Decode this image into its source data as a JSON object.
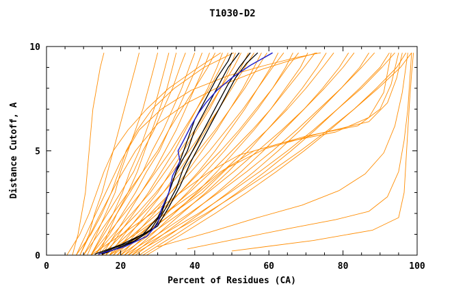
{
  "chart_data": {
    "type": "line",
    "title": "T1030-D2",
    "xlabel": "Percent of Residues (CA)",
    "ylabel": "Distance Cutoff, A",
    "xlim": [
      0,
      100
    ],
    "ylim": [
      0,
      10
    ],
    "x_ticks_major": [
      0,
      20,
      40,
      60,
      80,
      100
    ],
    "x_ticks_minor_step": 5,
    "y_ticks_major": [
      0,
      5,
      10
    ],
    "y_ticks_minor_step": 1,
    "grid": false,
    "legend": "none",
    "colors": {
      "models": "#ff8c00",
      "reference": "#000000",
      "highlight": "#2222cc",
      "frame": "#000000",
      "background": "#ffffff"
    },
    "y_levels": [
      0,
      1,
      2,
      3,
      4,
      5,
      6,
      7,
      8,
      9,
      9.7
    ],
    "orange_curves_x": [
      [
        7,
        8.5,
        9.5,
        10.5,
        11,
        11.5,
        12,
        12.5,
        13.5,
        14.5,
        15.5
      ],
      [
        9,
        11.5,
        13,
        15,
        16.5,
        18,
        19.5,
        21,
        22.5,
        24,
        25
      ],
      [
        11,
        13.5,
        16,
        18.5,
        20,
        22,
        24,
        26,
        27.5,
        29,
        30
      ],
      [
        12,
        15,
        18,
        20.5,
        22.5,
        25,
        27,
        29,
        30.5,
        32,
        33
      ],
      [
        14,
        16.5,
        19,
        22,
        24.5,
        26.5,
        28.5,
        30.5,
        32.5,
        34,
        35
      ],
      [
        10,
        13,
        16.5,
        20,
        23.5,
        26,
        29,
        31.5,
        34,
        36,
        37.5
      ],
      [
        12,
        15.5,
        19,
        22.5,
        26,
        28.5,
        31.5,
        34,
        36.5,
        38.5,
        40
      ],
      [
        13,
        17,
        20.5,
        24,
        27,
        30.5,
        33,
        35.5,
        38,
        40.5,
        42
      ],
      [
        15,
        18.5,
        22,
        25.5,
        29,
        32,
        35,
        37.5,
        40,
        42.5,
        44
      ],
      [
        10,
        14,
        18,
        22,
        26,
        30,
        33,
        36.5,
        40,
        43.5,
        45.5
      ],
      [
        16,
        19.5,
        23.5,
        27.5,
        31,
        34.5,
        37.5,
        40.5,
        43.5,
        46,
        47.5
      ],
      [
        12,
        16.5,
        21,
        25.5,
        29.5,
        33.5,
        37,
        40.5,
        44,
        47,
        49
      ],
      [
        17,
        21,
        25.5,
        30,
        33.5,
        37,
        40.5,
        44,
        47,
        49.5,
        51
      ],
      [
        13,
        18,
        23,
        28,
        32,
        36,
        40,
        43.5,
        47,
        50.5,
        52.5
      ],
      [
        18,
        22.5,
        27,
        31.5,
        35.5,
        39.5,
        43,
        46.5,
        49.5,
        52.5,
        54.5
      ],
      [
        14,
        19,
        24.5,
        29.5,
        34,
        38.5,
        42.5,
        46.5,
        50,
        53.5,
        56
      ],
      [
        19,
        24,
        29,
        33.5,
        38,
        42,
        46,
        49.5,
        53,
        56,
        58
      ],
      [
        15,
        20.5,
        26,
        31.5,
        36.5,
        41,
        45.5,
        49.5,
        53.5,
        57,
        59.5
      ],
      [
        20,
        25.5,
        31,
        36,
        41,
        45.5,
        49.5,
        53.5,
        57,
        60.5,
        62.5
      ],
      [
        16,
        22,
        28,
        33.5,
        39,
        44,
        48.5,
        53,
        57,
        61,
        64
      ],
      [
        21,
        27,
        32.5,
        38,
        43,
        48,
        52.5,
        57,
        61,
        64.5,
        66.5
      ],
      [
        17,
        23.5,
        30,
        36,
        41.5,
        47,
        52,
        56.5,
        61,
        65,
        68
      ],
      [
        22,
        28.5,
        34.5,
        40.5,
        46,
        51,
        56,
        60.5,
        64.5,
        68.5,
        70.5
      ],
      [
        18,
        25,
        32,
        38.5,
        44.5,
        50,
        55.5,
        60.5,
        65,
        69.5,
        72.5
      ],
      [
        23,
        30,
        36.5,
        43,
        49,
        54.5,
        59.5,
        64.5,
        69,
        73,
        75.5
      ],
      [
        19,
        26.5,
        34,
        41,
        47.5,
        53.5,
        59.5,
        65,
        70,
        74.5,
        77.5
      ],
      [
        24,
        31.5,
        39,
        46,
        52.5,
        58.5,
        64,
        69.5,
        74.5,
        79,
        81.5
      ],
      [
        20,
        28,
        36,
        43.5,
        50.5,
        57,
        63.5,
        69.5,
        75,
        80,
        83
      ],
      [
        25,
        33.5,
        41.5,
        49,
        56,
        62.5,
        68.5,
        74,
        79.5,
        84.5,
        87
      ],
      [
        21,
        30,
        38.5,
        46.5,
        54,
        61,
        67.5,
        73.5,
        79.5,
        85,
        88.5
      ],
      [
        26,
        35,
        43.5,
        51.5,
        59,
        66,
        72.5,
        78.5,
        84.5,
        90,
        92.5
      ],
      [
        22,
        31.5,
        41,
        49.5,
        57.5,
        65,
        72,
        78.5,
        85,
        90.5,
        94
      ],
      [
        27,
        36.5,
        45.5,
        54,
        62,
        69.5,
        76.5,
        83,
        89,
        94.5,
        97
      ],
      [
        23,
        33,
        43,
        52,
        60.5,
        68.5,
        76,
        83,
        89.5,
        95.5,
        98.5
      ],
      [
        5.5,
        9,
        11.5,
        13.5,
        15.5,
        18,
        22,
        27,
        33,
        41,
        47
      ],
      [
        8,
        12,
        15,
        17.5,
        19.5,
        21.5,
        24.5,
        28.5,
        34.5,
        42.5,
        50.5
      ]
    ],
    "orange_curves_pts": [
      [
        [
          50,
          0.2
        ],
        [
          72,
          0.7
        ],
        [
          88,
          1.2
        ],
        [
          95,
          1.8
        ],
        [
          96.5,
          3
        ],
        [
          97,
          4.5
        ],
        [
          97.5,
          6
        ],
        [
          98,
          7.5
        ],
        [
          98.5,
          8.7
        ],
        [
          99,
          9.7
        ]
      ],
      [
        [
          38,
          0.3
        ],
        [
          52,
          0.8
        ],
        [
          66,
          1.3
        ],
        [
          78,
          1.7
        ],
        [
          87,
          2.1
        ],
        [
          92,
          2.8
        ],
        [
          95,
          4
        ],
        [
          96.5,
          5.5
        ],
        [
          97.5,
          7
        ],
        [
          98.5,
          9.7
        ]
      ],
      [
        [
          30,
          0.4
        ],
        [
          44,
          1.1
        ],
        [
          57,
          1.8
        ],
        [
          69,
          2.4
        ],
        [
          79,
          3.1
        ],
        [
          86,
          3.9
        ],
        [
          91,
          4.9
        ],
        [
          94,
          6.2
        ],
        [
          96,
          7.8
        ],
        [
          97.5,
          9.7
        ]
      ],
      [
        [
          15,
          0
        ],
        [
          24,
          1
        ],
        [
          32,
          2
        ],
        [
          40,
          3
        ],
        [
          47,
          4
        ],
        [
          56,
          5
        ],
        [
          70,
          5.7
        ],
        [
          84,
          6.2
        ],
        [
          90,
          7
        ],
        [
          93,
          8.2
        ],
        [
          95,
          9.7
        ]
      ],
      [
        [
          17,
          0
        ],
        [
          26,
          1
        ],
        [
          34,
          2
        ],
        [
          42,
          3
        ],
        [
          49,
          4.2
        ],
        [
          59,
          5.1
        ],
        [
          73,
          5.8
        ],
        [
          87,
          6.4
        ],
        [
          92,
          7.3
        ],
        [
          94.5,
          8.5
        ],
        [
          96,
          9.7
        ]
      ],
      [
        [
          12,
          0
        ],
        [
          22,
          1.2
        ],
        [
          30,
          2.2
        ],
        [
          37,
          3.1
        ],
        [
          44,
          4
        ],
        [
          52,
          4.8
        ],
        [
          64,
          5.4
        ],
        [
          78,
          5.9
        ],
        [
          87,
          6.6
        ],
        [
          91,
          7.8
        ],
        [
          93,
          9.7
        ]
      ],
      [
        [
          8,
          0
        ],
        [
          12,
          1.5
        ],
        [
          16,
          3
        ],
        [
          20,
          4.5
        ],
        [
          25,
          6
        ],
        [
          31,
          7
        ],
        [
          39,
          7.9
        ],
        [
          49,
          8.6
        ],
        [
          59,
          9.1
        ],
        [
          68,
          9.5
        ],
        [
          74,
          9.7
        ]
      ],
      [
        [
          9,
          0
        ],
        [
          14,
          1.8
        ],
        [
          19,
          3.5
        ],
        [
          24,
          5
        ],
        [
          30,
          6.3
        ],
        [
          38,
          7.3
        ],
        [
          48,
          8.2
        ],
        [
          58,
          8.9
        ],
        [
          67,
          9.4
        ],
        [
          73,
          9.7
        ]
      ]
    ],
    "black_curves_pts": [
      [
        [
          13,
          0.05
        ],
        [
          20,
          0.5
        ],
        [
          26,
          1
        ],
        [
          30,
          1.8
        ],
        [
          32,
          2.5
        ],
        [
          34,
          3.5
        ],
        [
          36,
          4.5
        ],
        [
          38,
          5.5
        ],
        [
          40,
          6.5
        ],
        [
          43,
          7.5
        ],
        [
          46,
          8.5
        ],
        [
          49,
          9.3
        ],
        [
          50,
          9.7
        ]
      ],
      [
        [
          14,
          0.05
        ],
        [
          22,
          0.6
        ],
        [
          28,
          1.2
        ],
        [
          31,
          2
        ],
        [
          33,
          3
        ],
        [
          35,
          4
        ],
        [
          38,
          5
        ],
        [
          40,
          6
        ],
        [
          43,
          7
        ],
        [
          46,
          8
        ],
        [
          49,
          9
        ],
        [
          52,
          9.7
        ]
      ],
      [
        [
          15,
          0.05
        ],
        [
          23,
          0.6
        ],
        [
          29,
          1.3
        ],
        [
          32,
          2.2
        ],
        [
          35,
          3.2
        ],
        [
          37,
          4.2
        ],
        [
          40,
          5.2
        ],
        [
          43,
          6.2
        ],
        [
          46,
          7.2
        ],
        [
          49,
          8.2
        ],
        [
          52,
          9
        ],
        [
          55,
          9.7
        ]
      ],
      [
        [
          16,
          0.1
        ],
        [
          24,
          0.7
        ],
        [
          30,
          1.4
        ],
        [
          33,
          2.3
        ],
        [
          36,
          3.3
        ],
        [
          39,
          4.5
        ],
        [
          42,
          5.5
        ],
        [
          45,
          6.5
        ],
        [
          48,
          7.5
        ],
        [
          51,
          8.5
        ],
        [
          54,
          9.2
        ],
        [
          57,
          9.7
        ]
      ]
    ],
    "blue_curve_pts": [
      [
        [
          14,
          0.05
        ],
        [
          21,
          0.4
        ],
        [
          27,
          0.9
        ],
        [
          30,
          1.5
        ],
        [
          31,
          2.2
        ],
        [
          33,
          3
        ],
        [
          34,
          3.8
        ],
        [
          36,
          4.5
        ],
        [
          35.5,
          5
        ],
        [
          37,
          5.5
        ],
        [
          39,
          6.2
        ],
        [
          41,
          6.8
        ],
        [
          43,
          7.3
        ],
        [
          46,
          7.9
        ],
        [
          50,
          8.5
        ],
        [
          55,
          9.1
        ],
        [
          59,
          9.5
        ],
        [
          61,
          9.7
        ]
      ]
    ]
  }
}
